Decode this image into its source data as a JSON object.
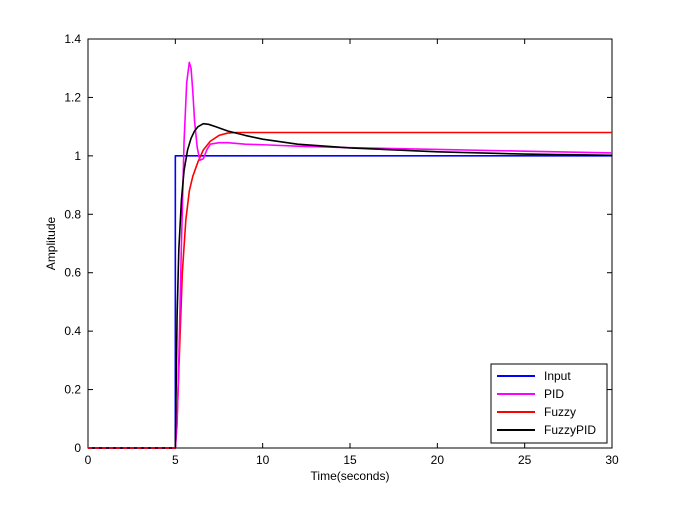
{
  "chart_data": {
    "type": "line",
    "title": "",
    "xlabel": "Time(seconds)",
    "ylabel": "Amplitude",
    "xlim": [
      0,
      30
    ],
    "ylim": [
      0,
      1.4
    ],
    "xticks": [
      0,
      5,
      10,
      15,
      20,
      25,
      30
    ],
    "xtick_labels": [
      "0",
      "5",
      "10",
      "15",
      "20",
      "25",
      "30"
    ],
    "yticks": [
      0,
      0.2,
      0.4,
      0.6,
      0.8,
      1,
      1.2,
      1.4
    ],
    "ytick_labels": [
      "0",
      "0.2",
      "0.4",
      "0.6",
      "0.8",
      "1",
      "1.2",
      "1.4"
    ],
    "grid": false,
    "legend_position": "bottom-right",
    "series": [
      {
        "name": "Input",
        "color": "#0000ff",
        "x": [
          0,
          5,
          5,
          30
        ],
        "y": [
          0,
          0,
          1,
          1
        ]
      },
      {
        "name": "PID",
        "color": "#ff00ff",
        "x": [
          0,
          5,
          5.1,
          5.2,
          5.35,
          5.5,
          5.65,
          5.8,
          5.9,
          6.0,
          6.1,
          6.25,
          6.4,
          6.6,
          6.8,
          7,
          7.5,
          8,
          9,
          10,
          12,
          15,
          20,
          25,
          30
        ],
        "y": [
          0,
          0,
          0.08,
          0.3,
          0.7,
          1.05,
          1.25,
          1.32,
          1.3,
          1.22,
          1.12,
          1.03,
          0.985,
          0.99,
          1.02,
          1.04,
          1.045,
          1.045,
          1.04,
          1.038,
          1.033,
          1.028,
          1.022,
          1.016,
          1.01
        ]
      },
      {
        "name": "Fuzzy",
        "color": "#ff0000",
        "x": [
          0,
          5,
          5.1,
          5.25,
          5.4,
          5.6,
          5.8,
          6.0,
          6.3,
          6.6,
          7,
          7.5,
          8,
          8.5,
          9,
          10,
          30
        ],
        "y": [
          0,
          0,
          0.1,
          0.35,
          0.6,
          0.78,
          0.88,
          0.93,
          0.98,
          1.02,
          1.05,
          1.07,
          1.078,
          1.08,
          1.08,
          1.08,
          1.08
        ]
      },
      {
        "name": "FuzzyPID",
        "color": "#000000",
        "x": [
          0,
          5,
          5.1,
          5.2,
          5.35,
          5.5,
          5.7,
          5.9,
          6.1,
          6.3,
          6.6,
          6.9,
          7.3,
          8,
          9,
          10,
          12,
          15,
          20,
          25,
          30
        ],
        "y": [
          0,
          0,
          0.45,
          0.68,
          0.85,
          0.95,
          1.02,
          1.06,
          1.085,
          1.1,
          1.11,
          1.108,
          1.1,
          1.085,
          1.07,
          1.057,
          1.04,
          1.027,
          1.014,
          1.006,
          1.002
        ]
      }
    ]
  }
}
